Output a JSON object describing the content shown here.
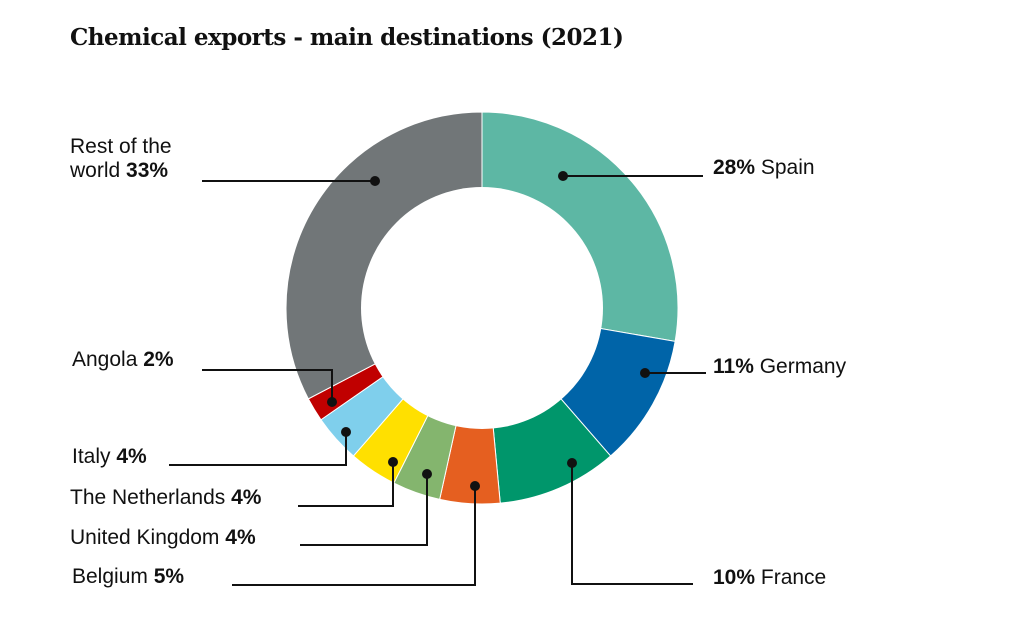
{
  "title": "Chemical exports - main destinations (2021)",
  "chart_data": {
    "type": "pie",
    "variant": "donut",
    "title": "Chemical exports - main destinations (2021)",
    "unit": "%",
    "slices": [
      {
        "label": "Spain",
        "value": 28,
        "color": "#5db7a4"
      },
      {
        "label": "Germany",
        "value": 11,
        "color": "#0064a8"
      },
      {
        "label": "France",
        "value": 10,
        "color": "#00966b"
      },
      {
        "label": "Belgium",
        "value": 5,
        "color": "#e55f20"
      },
      {
        "label": "United Kingdom",
        "value": 4,
        "color": "#84b56e"
      },
      {
        "label": "The Netherlands",
        "value": 4,
        "color": "#ffe000"
      },
      {
        "label": "Italy",
        "value": 4,
        "color": "#7fcfec"
      },
      {
        "label": "Angola",
        "value": 2,
        "color": "#c00000"
      },
      {
        "label": "Rest of the world",
        "value": 33,
        "color": "#717678"
      }
    ]
  },
  "labels": {
    "spain": {
      "pct": "28%",
      "name": "Spain"
    },
    "germany": {
      "pct": "11%",
      "name": "Germany"
    },
    "france": {
      "pct": "10%",
      "name": "France"
    },
    "belgium": {
      "name": "Belgium",
      "pct": "5%"
    },
    "uk": {
      "name": "United Kingdom",
      "pct": "4%"
    },
    "netherlands": {
      "name": "The Netherlands",
      "pct": "4%"
    },
    "italy": {
      "name": "Italy",
      "pct": "4%"
    },
    "angola": {
      "name": "Angola",
      "pct": "2%"
    },
    "rest": {
      "line1": "Rest of the",
      "line2": "world",
      "pct": "33%"
    }
  }
}
